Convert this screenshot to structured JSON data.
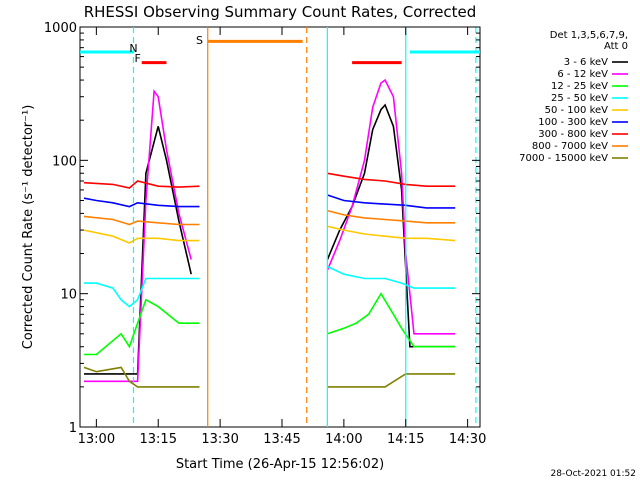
{
  "chart_data": {
    "type": "line",
    "title": "RHESSI Observing Summary Count Rates, Corrected",
    "xlabel": "Start Time (26-Apr-15 12:56:02)",
    "ylabel": "Corrected Count Rate (s⁻¹ detector⁻¹)",
    "ylog": true,
    "xlim": [
      "12:56:02",
      "14:33:00"
    ],
    "ylim": [
      1,
      1000
    ],
    "x_ticks": [
      "13:00",
      "13:15",
      "13:30",
      "13:45",
      "14:00",
      "14:15",
      "14:30"
    ],
    "y_ticks": [
      "1",
      "10",
      "100",
      "1000"
    ],
    "footer": "28-Oct-2021 01:52",
    "legend": {
      "placement": "right, outside plot",
      "header_lines": [
        "Det 1,3,5,6,7,9,",
        "Att 0"
      ],
      "entries": [
        {
          "label": "3 - 6 keV",
          "color": "#000000"
        },
        {
          "label": "6 - 12 keV",
          "color": "#ff00ff"
        },
        {
          "label": "12 - 25 keV",
          "color": "#00ff00"
        },
        {
          "label": "25 - 50 keV",
          "color": "#00ffff"
        },
        {
          "label": "50 - 100 keV",
          "color": "#ffc800"
        },
        {
          "label": "100 - 300 keV",
          "color": "#0000ff"
        },
        {
          "label": "300 - 800 keV",
          "color": "#ff0000"
        },
        {
          "label": "800 - 7000 keV",
          "color": "#ff7f00"
        },
        {
          "label": "7000 - 15000 keV",
          "color": "#808000"
        }
      ]
    },
    "markers": [
      {
        "label": "N",
        "color": "#00ffff",
        "x": "13:09"
      },
      {
        "label": "F",
        "color": "#ff0000",
        "x": "13:10"
      },
      {
        "label": "S",
        "color": "#ff7f00",
        "x": "13:25"
      }
    ],
    "series": [
      {
        "name": "3 - 6 keV",
        "color": "#000000",
        "segments": [
          {
            "x": [
              "12:57",
              "13:06",
              "13:08",
              "13:10",
              "13:12",
              "13:15",
              "13:17",
              "13:20",
              "13:23"
            ],
            "y": [
              2.5,
              2.5,
              2.5,
              2.5,
              80,
              180,
              100,
              35,
              14
            ]
          },
          {
            "x": [
              "13:56",
              "13:59",
              "14:02",
              "14:05",
              "14:07",
              "14:09",
              "14:10",
              "14:12",
              "14:14",
              "14:16",
              "14:20",
              "14:27"
            ],
            "y": [
              18,
              30,
              45,
              80,
              170,
              240,
              260,
              180,
              60,
              4,
              4,
              4
            ]
          }
        ]
      },
      {
        "name": "6 - 12 keV",
        "color": "#ff00ff",
        "segments": [
          {
            "x": [
              "12:57",
              "13:06",
              "13:10",
              "13:12",
              "13:14",
              "13:15",
              "13:17",
              "13:20",
              "13:23"
            ],
            "y": [
              2.2,
              2.2,
              2.2,
              50,
              330,
              300,
              120,
              40,
              18
            ]
          },
          {
            "x": [
              "13:56",
              "13:59",
              "14:02",
              "14:05",
              "14:07",
              "14:09",
              "14:10",
              "14:12",
              "14:14",
              "14:15",
              "14:17",
              "14:27"
            ],
            "y": [
              15,
              25,
              45,
              100,
              250,
              380,
              400,
              300,
              80,
              20,
              5,
              5
            ]
          }
        ]
      },
      {
        "name": "12 - 25 keV",
        "color": "#00ff00",
        "segments": [
          {
            "x": [
              "12:57",
              "13:00",
              "13:06",
              "13:08",
              "13:10",
              "13:12",
              "13:15",
              "13:20",
              "13:25"
            ],
            "y": [
              3.5,
              3.5,
              5,
              4,
              6,
              9,
              8,
              6,
              6
            ]
          },
          {
            "x": [
              "13:56",
              "14:00",
              "14:03",
              "14:06",
              "14:09",
              "14:12",
              "14:14",
              "14:17",
              "14:27"
            ],
            "y": [
              5,
              5.5,
              6,
              7,
              10,
              7,
              5.5,
              4,
              4
            ]
          }
        ]
      },
      {
        "name": "25 - 50 keV",
        "color": "#00ffff",
        "segments": [
          {
            "x": [
              "12:57",
              "13:00",
              "13:04",
              "13:06",
              "13:08",
              "13:10",
              "13:12",
              "13:15",
              "13:20",
              "13:25"
            ],
            "y": [
              12,
              12,
              11,
              9,
              8,
              9,
              13,
              13,
              13,
              13
            ]
          },
          {
            "x": [
              "13:56",
              "14:00",
              "14:05",
              "14:10",
              "14:14",
              "14:17",
              "14:27"
            ],
            "y": [
              16,
              14,
              13,
              13,
              12,
              11,
              11
            ]
          }
        ]
      },
      {
        "name": "50 - 100 keV",
        "color": "#ffc800",
        "segments": [
          {
            "x": [
              "12:57",
              "13:04",
              "13:08",
              "13:10",
              "13:15",
              "13:20",
              "13:25"
            ],
            "y": [
              30,
              27,
              24,
              26,
              26,
              25,
              25
            ]
          },
          {
            "x": [
              "13:56",
              "14:00",
              "14:05",
              "14:10",
              "14:15",
              "14:20",
              "14:27"
            ],
            "y": [
              32,
              30,
              28,
              27,
              26,
              26,
              25
            ]
          }
        ]
      },
      {
        "name": "100 - 300 keV",
        "color": "#0000ff",
        "segments": [
          {
            "x": [
              "12:57",
              "13:00",
              "13:04",
              "13:08",
              "13:10",
              "13:15",
              "13:20",
              "13:25"
            ],
            "y": [
              52,
              50,
              48,
              45,
              48,
              46,
              45,
              45
            ]
          },
          {
            "x": [
              "13:56",
              "14:00",
              "14:05",
              "14:10",
              "14:15",
              "14:20",
              "14:27"
            ],
            "y": [
              55,
              50,
              48,
              47,
              46,
              44,
              44
            ]
          }
        ]
      },
      {
        "name": "300 - 800 keV",
        "color": "#ff0000",
        "segments": [
          {
            "x": [
              "12:57",
              "13:04",
              "13:08",
              "13:10",
              "13:15",
              "13:20",
              "13:25"
            ],
            "y": [
              68,
              66,
              62,
              70,
              64,
              63,
              64
            ]
          },
          {
            "x": [
              "13:56",
              "14:00",
              "14:05",
              "14:10",
              "14:15",
              "14:20",
              "14:27"
            ],
            "y": [
              80,
              76,
              72,
              70,
              66,
              64,
              64
            ]
          }
        ]
      },
      {
        "name": "800 - 7000 keV",
        "color": "#ff7f00",
        "segments": [
          {
            "x": [
              "12:57",
              "13:04",
              "13:08",
              "13:10",
              "13:15",
              "13:20",
              "13:25"
            ],
            "y": [
              38,
              36,
              33,
              35,
              34,
              33,
              33
            ]
          },
          {
            "x": [
              "13:56",
              "14:00",
              "14:05",
              "14:10",
              "14:15",
              "14:20",
              "14:27"
            ],
            "y": [
              42,
              39,
              37,
              36,
              35,
              34,
              34
            ]
          }
        ]
      },
      {
        "name": "7000 - 15000 keV",
        "color": "#808000",
        "segments": [
          {
            "x": [
              "12:57",
              "13:00",
              "13:06",
              "13:08",
              "13:10",
              "13:12",
              "13:20",
              "13:25"
            ],
            "y": [
              2.8,
              2.6,
              2.8,
              2.2,
              2,
              2,
              2,
              2
            ]
          },
          {
            "x": [
              "13:56",
              "14:00",
              "14:05",
              "14:10",
              "14:15",
              "14:20",
              "14:27"
            ],
            "y": [
              2,
              2,
              2,
              2,
              2.5,
              2.5,
              2.5
            ]
          }
        ]
      }
    ],
    "status_bars": [
      {
        "color": "#00ffff",
        "x": [
          "12:56:02",
          "13:09"
        ],
        "y": 650
      },
      {
        "color": "#00ffff",
        "x": [
          "14:16",
          "14:33"
        ],
        "y": 650
      },
      {
        "color": "#ff0000",
        "x": [
          "13:11",
          "13:17"
        ],
        "y": 540
      },
      {
        "color": "#ff0000",
        "x": [
          "14:02",
          "14:14"
        ],
        "y": 540
      },
      {
        "color": "#ff7f00",
        "x": [
          "13:27",
          "13:50"
        ],
        "y": 780
      }
    ],
    "vertical_lines": [
      {
        "color": "#00ffff",
        "x": "13:09",
        "dashed": true
      },
      {
        "color": "#00ffff",
        "x": "14:32",
        "dashed": true
      },
      {
        "color": "#00ffff",
        "x": "13:56",
        "dashed": false
      },
      {
        "color": "#00ffff",
        "x": "14:15",
        "dashed": false
      },
      {
        "color": "#ff7f00",
        "x": "13:27",
        "dashed": false
      },
      {
        "color": "#ff7f00",
        "x": "13:51",
        "dashed": true
      }
    ]
  }
}
